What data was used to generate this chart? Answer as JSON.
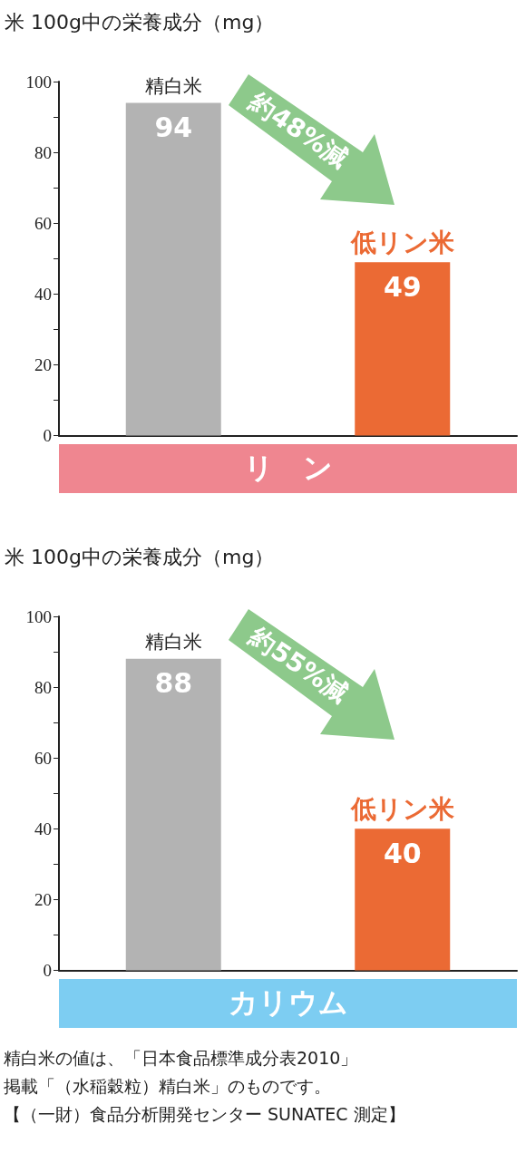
{
  "chart_data": [
    {
      "type": "bar",
      "title": "米 100g中の栄養成分（mg）",
      "xlabel": "リ　ン",
      "categories": [
        "精白米",
        "低リン米"
      ],
      "values": [
        94,
        49
      ],
      "colors": [
        "#b3b3b3",
        "#eb6a34"
      ],
      "data_labels": true,
      "ylim": [
        0,
        100
      ],
      "yticks": [
        0,
        {
          "value": 10,
          "label": null
        },
        20,
        {
          "value": 30,
          "label": null
        },
        40,
        {
          "value": 50,
          "label": null
        },
        60,
        {
          "value": 70,
          "label": null
        },
        80,
        {
          "value": 90,
          "label": null
        },
        100
      ],
      "grid": false,
      "annotations": [
        "約48%減"
      ]
    },
    {
      "type": "bar",
      "title": "米 100g中の栄養成分（mg）",
      "xlabel": "カリウム",
      "categories": [
        "精白米",
        "低リン米"
      ],
      "values": [
        88,
        40
      ],
      "colors": [
        "#b3b3b3",
        "#eb6a34"
      ],
      "data_labels": true,
      "ylim": [
        0,
        100
      ],
      "yticks": [
        0,
        {
          "value": 10,
          "label": null
        },
        20,
        {
          "value": 30,
          "label": null
        },
        40,
        {
          "value": 50,
          "label": null
        },
        60,
        {
          "value": 70,
          "label": null
        },
        80,
        {
          "value": 90,
          "label": null
        },
        100
      ],
      "grid": false,
      "annotations": [
        "約55%減",
        "精白米の値は、「日本食品標準成分表2010」",
        "掲載「（水稲穀粒）精白米」のものです。",
        "【（一財）食品分析開発センター SUNATEC 測定】"
      ]
    }
  ]
}
